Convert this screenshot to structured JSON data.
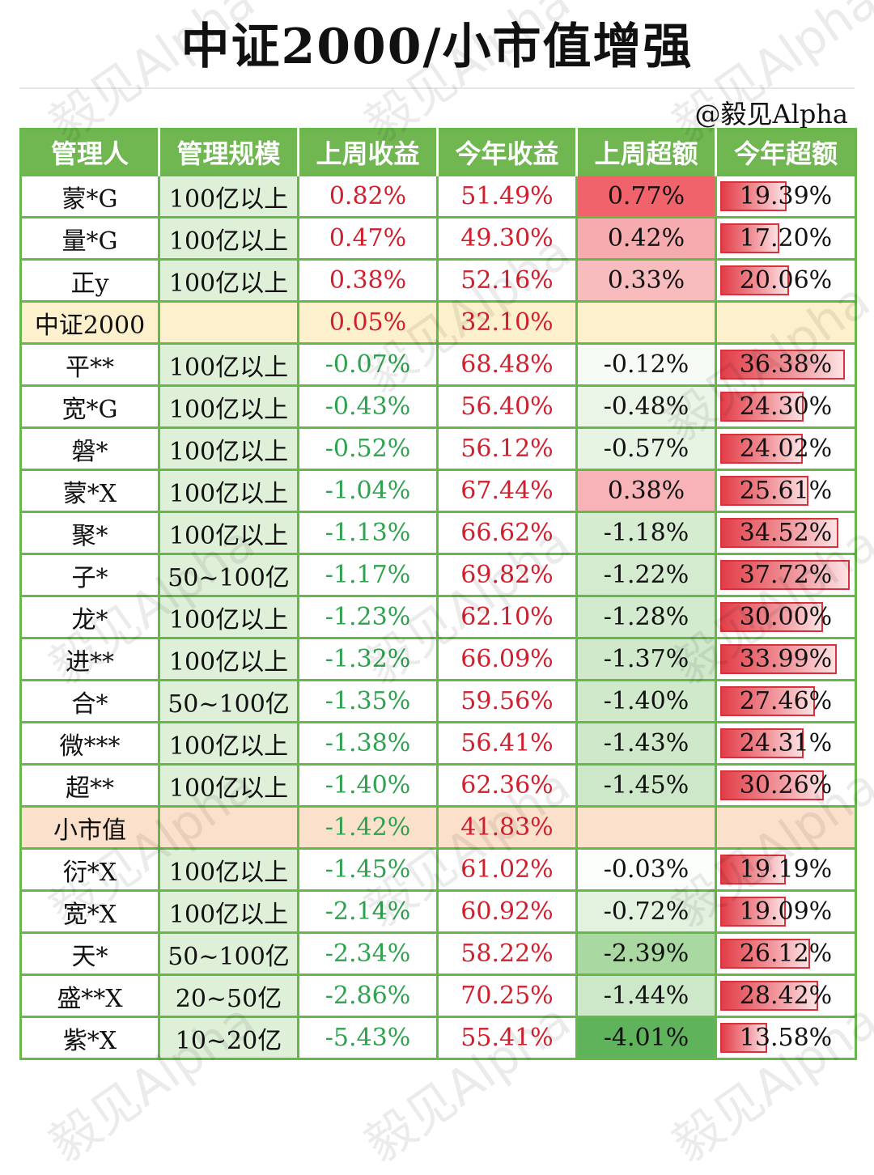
{
  "title": "中证2000/小市值增强",
  "credit": "@毅见Alpha",
  "watermark": "毅见Alpha",
  "headers": [
    "管理人",
    "管理规模",
    "上周收益",
    "今年收益",
    "上周超额",
    "今年超额"
  ],
  "rows": [
    {
      "name": "蒙*G",
      "scale": "100亿以上",
      "week_ret": "0.82%",
      "ytd_ret": "51.49%",
      "week_excess": "0.77%",
      "ytd_excess": "19.39%",
      "week_excess_bg": "#f0636b",
      "ytd_excess_val": 19.39
    },
    {
      "name": "量*G",
      "scale": "100亿以上",
      "week_ret": "0.47%",
      "ytd_ret": "49.30%",
      "week_excess": "0.42%",
      "ytd_excess": "17.20%",
      "week_excess_bg": "#f6abaf",
      "ytd_excess_val": 17.2
    },
    {
      "name": "正y",
      "scale": "100亿以上",
      "week_ret": "0.38%",
      "ytd_ret": "52.16%",
      "week_excess": "0.33%",
      "ytd_excess": "20.06%",
      "week_excess_bg": "#f8bcbf",
      "ytd_excess_val": 20.06
    },
    {
      "name": "中证2000",
      "benchmark": "bench",
      "scale": "",
      "week_ret": "0.05%",
      "ytd_ret": "32.10%",
      "week_excess": "",
      "ytd_excess": ""
    },
    {
      "name": "平**",
      "scale": "100亿以上",
      "week_ret": "-0.07%",
      "ytd_ret": "68.48%",
      "week_excess": "-0.12%",
      "ytd_excess": "36.38%",
      "week_excess_bg": "#f7fbf6",
      "ytd_excess_val": 36.38
    },
    {
      "name": "宽*G",
      "scale": "100亿以上",
      "week_ret": "-0.43%",
      "ytd_ret": "56.40%",
      "week_excess": "-0.48%",
      "ytd_excess": "24.30%",
      "week_excess_bg": "#eaf5e7",
      "ytd_excess_val": 24.3
    },
    {
      "name": "磐*",
      "scale": "100亿以上",
      "week_ret": "-0.52%",
      "ytd_ret": "56.12%",
      "week_excess": "-0.57%",
      "ytd_excess": "24.02%",
      "week_excess_bg": "#e7f4e4",
      "ytd_excess_val": 24.02
    },
    {
      "name": "蒙*X",
      "scale": "100亿以上",
      "week_ret": "-1.04%",
      "ytd_ret": "67.44%",
      "week_excess": "0.38%",
      "ytd_excess": "25.61%",
      "week_excess_bg": "#f7b3b7",
      "ytd_excess_val": 25.61
    },
    {
      "name": "聚*",
      "scale": "100亿以上",
      "week_ret": "-1.13%",
      "ytd_ret": "66.62%",
      "week_excess": "-1.18%",
      "ytd_excess": "34.52%",
      "week_excess_bg": "#d5ecd0",
      "ytd_excess_val": 34.52
    },
    {
      "name": "子*",
      "scale": "50~100亿",
      "week_ret": "-1.17%",
      "ytd_ret": "69.82%",
      "week_excess": "-1.22%",
      "ytd_excess": "37.72%",
      "week_excess_bg": "#d4ebcf",
      "ytd_excess_val": 37.72
    },
    {
      "name": "龙*",
      "scale": "100亿以上",
      "week_ret": "-1.23%",
      "ytd_ret": "62.10%",
      "week_excess": "-1.28%",
      "ytd_excess": "30.00%",
      "week_excess_bg": "#d2eacd",
      "ytd_excess_val": 30.0
    },
    {
      "name": "进**",
      "scale": "100亿以上",
      "week_ret": "-1.32%",
      "ytd_ret": "66.09%",
      "week_excess": "-1.37%",
      "ytd_excess": "33.99%",
      "week_excess_bg": "#d0e9cb",
      "ytd_excess_val": 33.99
    },
    {
      "name": "合*",
      "scale": "50~100亿",
      "week_ret": "-1.35%",
      "ytd_ret": "59.56%",
      "week_excess": "-1.40%",
      "ytd_excess": "27.46%",
      "week_excess_bg": "#cfe9ca",
      "ytd_excess_val": 27.46
    },
    {
      "name": "微***",
      "scale": "100亿以上",
      "week_ret": "-1.38%",
      "ytd_ret": "56.41%",
      "week_excess": "-1.43%",
      "ytd_excess": "24.31%",
      "week_excess_bg": "#cee8c9",
      "ytd_excess_val": 24.31
    },
    {
      "name": "超**",
      "scale": "100亿以上",
      "week_ret": "-1.40%",
      "ytd_ret": "62.36%",
      "week_excess": "-1.45%",
      "ytd_excess": "30.26%",
      "week_excess_bg": "#cde8c8",
      "ytd_excess_val": 30.26
    },
    {
      "name": "小市值",
      "benchmark": "bench2",
      "scale": "",
      "week_ret": "-1.42%",
      "ytd_ret": "41.83%",
      "week_excess": "",
      "ytd_excess": ""
    },
    {
      "name": "衍*X",
      "scale": "100亿以上",
      "week_ret": "-1.45%",
      "ytd_ret": "61.02%",
      "week_excess": "-0.03%",
      "ytd_excess": "19.19%",
      "week_excess_bg": "#fcfefb",
      "ytd_excess_val": 19.19
    },
    {
      "name": "宽*X",
      "scale": "100亿以上",
      "week_ret": "-2.14%",
      "ytd_ret": "60.92%",
      "week_excess": "-0.72%",
      "ytd_excess": "19.09%",
      "week_excess_bg": "#e2f2df",
      "ytd_excess_val": 19.09
    },
    {
      "name": "天*",
      "scale": "50~100亿",
      "week_ret": "-2.34%",
      "ytd_ret": "58.22%",
      "week_excess": "-2.39%",
      "ytd_excess": "26.12%",
      "week_excess_bg": "#a9d9a0",
      "ytd_excess_val": 26.12
    },
    {
      "name": "盛**X",
      "scale": "20~50亿",
      "week_ret": "-2.86%",
      "ytd_ret": "70.25%",
      "week_excess": "-1.44%",
      "ytd_excess": "28.42%",
      "week_excess_bg": "#cde8c8",
      "ytd_excess_val": 28.42
    },
    {
      "name": "紫*X",
      "scale": "10~20亿",
      "week_ret": "-5.43%",
      "ytd_ret": "55.41%",
      "week_excess": "-4.01%",
      "ytd_excess": "13.58%",
      "week_excess_bg": "#5fb35a",
      "ytd_excess_val": 13.58
    }
  ]
}
